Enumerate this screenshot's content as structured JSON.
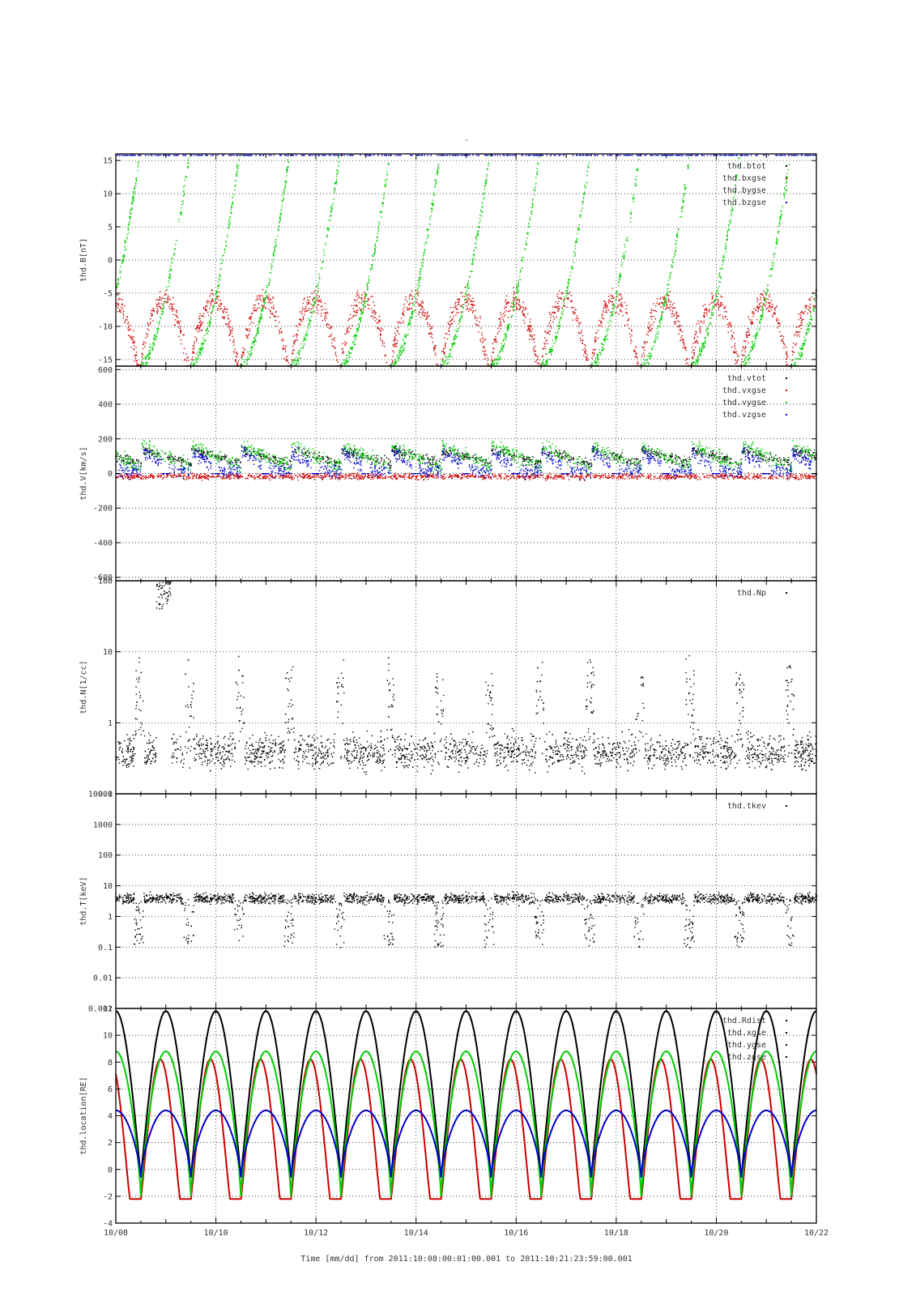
{
  "figure": {
    "title": "-",
    "xlabel": "Time [mm/dd]  from 2011:10:08:00:01:00.001  to  2011:10:21:23:59:00.001",
    "x_ticks": [
      "10/08",
      "10/10",
      "10/12",
      "10/14",
      "10/16",
      "10/18",
      "10/20",
      "10/22"
    ]
  },
  "colors": {
    "black": "#000000",
    "red": "#cc0000",
    "green": "#00cc00",
    "blue": "#0000cc"
  },
  "chart_data": [
    {
      "type": "scatter",
      "ylabel": "thd.B[nT]",
      "ylim": [
        -16,
        16
      ],
      "yscale": "linear",
      "y_ticks": [
        -15,
        -10,
        -5,
        0,
        5,
        10,
        15
      ],
      "grid": true,
      "legend_position": "top-right",
      "series": [
        {
          "name": "thd.btot"
        },
        {
          "name": "thd.bxgse"
        },
        {
          "name": "thd.bygse"
        },
        {
          "name": "thd.bzgse"
        }
      ]
    },
    {
      "type": "scatter",
      "ylabel": "thd.V[km/s]",
      "ylim": [
        -620,
        620
      ],
      "yscale": "linear",
      "y_ticks": [
        -600,
        -400,
        -200,
        0,
        200,
        400,
        600
      ],
      "grid": true,
      "legend_position": "top-right",
      "series": [
        {
          "name": "thd.vtot"
        },
        {
          "name": "thd.vxgse"
        },
        {
          "name": "thd.vygse"
        },
        {
          "name": "thd.vzgse"
        }
      ]
    },
    {
      "type": "scatter",
      "ylabel": "thd.N[1/cc]",
      "ylim": [
        0.1,
        100
      ],
      "yscale": "log",
      "y_ticks": [
        0.1,
        1,
        10,
        100
      ],
      "grid": true,
      "legend_position": "top-right",
      "series": [
        {
          "name": "thd.Np"
        }
      ]
    },
    {
      "type": "scatter",
      "ylabel": "thd.T[keV]",
      "ylim": [
        0.001,
        10000
      ],
      "yscale": "log",
      "y_ticks": [
        "0.001",
        "0.01",
        "0.1",
        "1",
        "10",
        "100",
        "1000",
        "10000"
      ],
      "grid": true,
      "legend_position": "top-right",
      "series": [
        {
          "name": "thd.tkev"
        }
      ]
    },
    {
      "type": "line",
      "ylabel": "thd.location[RE]",
      "ylim": [
        -4,
        12
      ],
      "yscale": "linear",
      "y_ticks": [
        -4,
        -2,
        0,
        2,
        4,
        6,
        8,
        10,
        12
      ],
      "grid": true,
      "legend_position": "top-right",
      "series": [
        {
          "name": "thd.Rdist"
        },
        {
          "name": "thd.xgse"
        },
        {
          "name": "thd.ygse"
        },
        {
          "name": "thd.zgse"
        }
      ]
    }
  ]
}
